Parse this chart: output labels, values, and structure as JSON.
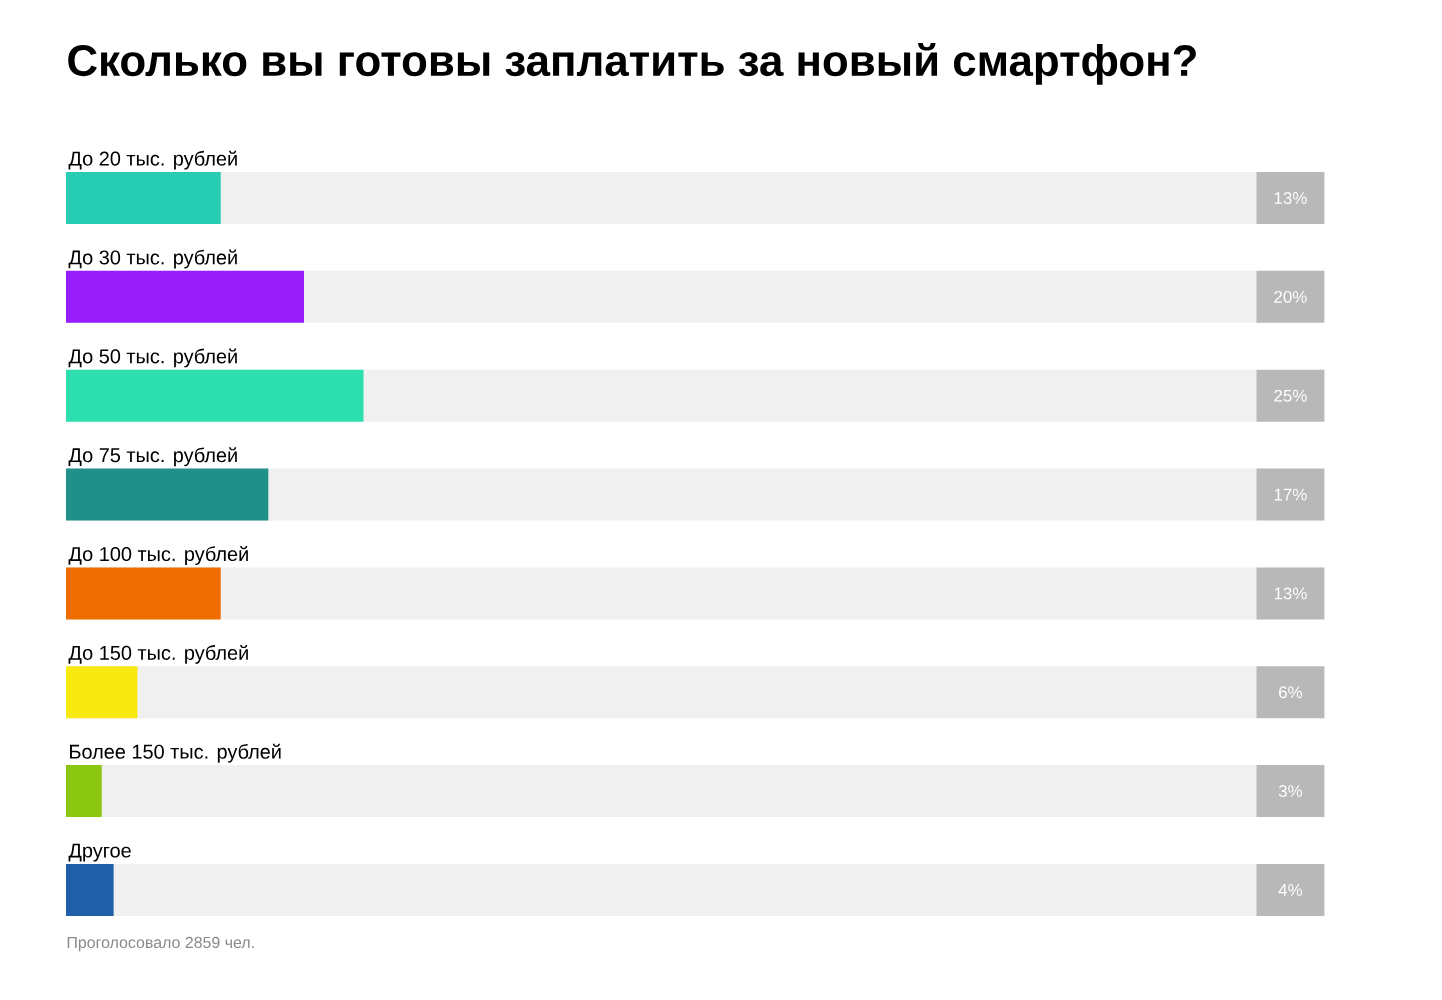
{
  "chart_data": {
    "type": "bar",
    "orientation": "horizontal",
    "title": "Сколько вы готовы заплатить за новый смартфон?",
    "categories": [
      "До 20 тыс. рублей",
      "До 30 тыс. рублей",
      "До 50 тыс. рублей",
      "До 75 тыс. рублей",
      "До 100 тыс. рублей",
      "До 150 тыс. рублей",
      "Более 150 тыс. рублей",
      "Другое"
    ],
    "values": [
      13,
      20,
      25,
      17,
      13,
      6,
      3,
      4
    ],
    "value_labels": [
      "13%",
      "20%",
      "25%",
      "17%",
      "13%",
      "6%",
      "3%",
      "4%"
    ],
    "colors": [
      "#26cdb3",
      "#981dfb",
      "#2ddfae",
      "#1f908a",
      "#ee6c00",
      "#f8ea10",
      "#8bc610",
      "#1f5fa8"
    ],
    "xlim": [
      0,
      100
    ],
    "annotations": [
      "Проголосовало 2859 чел."
    ]
  }
}
